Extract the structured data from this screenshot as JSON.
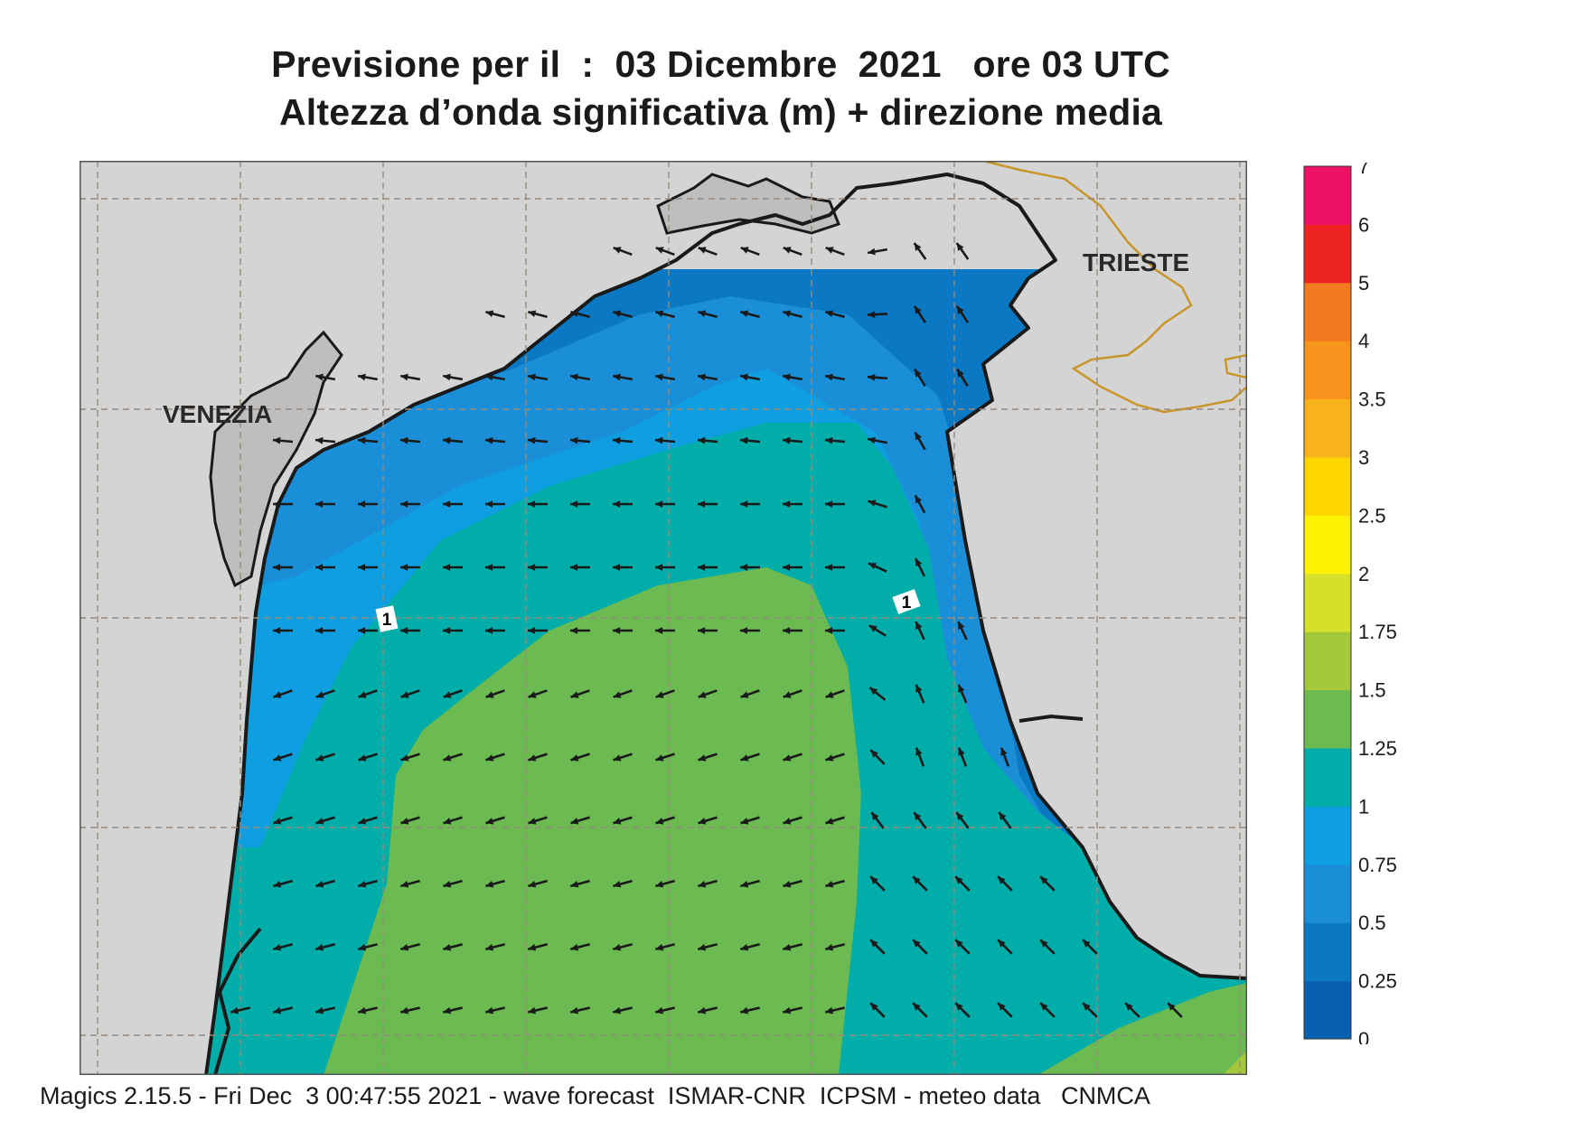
{
  "title": {
    "line1": "Previsione per il  :  03 Dicembre  2021   ore 03 UTC",
    "line2": "Altezza d’onda significativa (m) + direzione media"
  },
  "map": {
    "cities": [
      {
        "name": "VENEZIA"
      },
      {
        "name": "TRIESTE"
      }
    ],
    "contour_labels": [
      "1",
      "1"
    ],
    "colors": {
      "land": "#d4d4d4",
      "land_dark": "#bebebe",
      "coastline": "#1a1a1a",
      "border": "#c8962a",
      "grid": "#9a8a7a",
      "arrow": "#1a1a1a"
    }
  },
  "legend": {
    "levels": [
      "0",
      "0.25",
      "0.5",
      "0.75",
      "1",
      "1.25",
      "1.5",
      "1.75",
      "2",
      "2.5",
      "3",
      "3.5",
      "4",
      "5",
      "6",
      "7"
    ],
    "colors": [
      "#0a5fae",
      "#0b78c4",
      "#1a8fd8",
      "#0f9fe0",
      "#00ada9",
      "#6cbb52",
      "#a4c83c",
      "#d6e02a",
      "#fff200",
      "#ffd600",
      "#f8b21c",
      "#f7941d",
      "#f47a20",
      "#ee2424",
      "#ed1166"
    ]
  },
  "footer": {
    "text": "Magics 2.15.5 - Fri Dec  3 00:47:55 2021 - wave forecast  ISMAR-CNR  ICPSM - meteo data   CNMCA"
  }
}
